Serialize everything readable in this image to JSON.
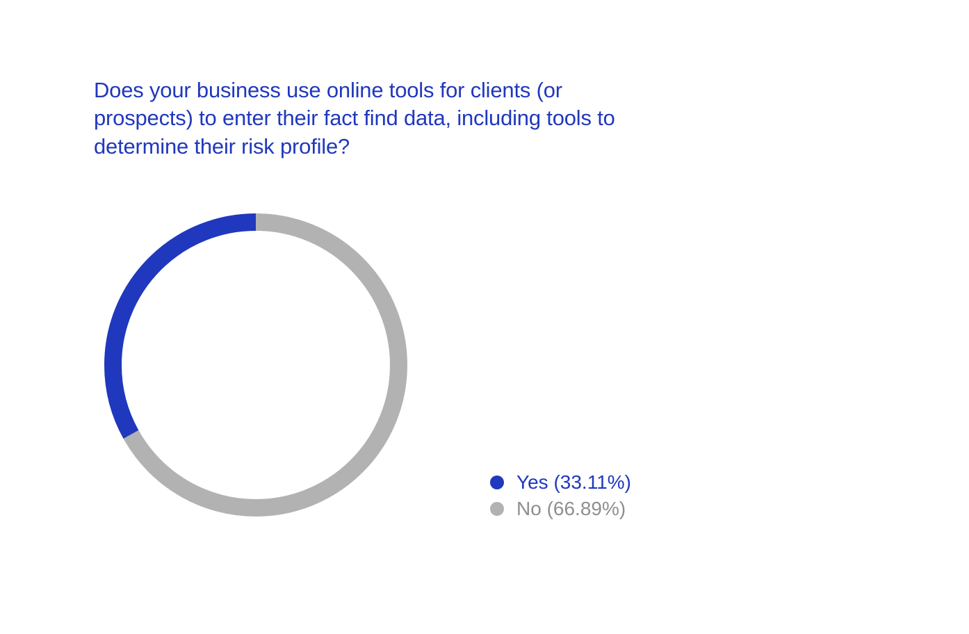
{
  "chart": {
    "type": "donut",
    "title": "Does your business use online tools for clients (or prospects) to enter their fact find data, including tools to determine their risk profile?",
    "title_color": "#2038bd",
    "title_fontsize": 31,
    "background_color": "#ffffff",
    "inner_radius_ratio": 0.88,
    "stroke_width": 25,
    "size": 440,
    "start_angle_deg": -90,
    "slices": [
      {
        "label": "Yes",
        "value": 33.11,
        "color": "#2038bd",
        "text_color": "#2038bd"
      },
      {
        "label": "No",
        "value": 66.89,
        "color": "#b2b2b2",
        "text_color": "#8f8f8f"
      }
    ],
    "legend": {
      "fontsize": 28,
      "items": [
        {
          "text": "Yes (33.11%)",
          "dot_color": "#2038bd",
          "text_color": "#2038bd"
        },
        {
          "text": "No (66.89%)",
          "dot_color": "#b2b2b2",
          "text_color": "#8f8f8f"
        }
      ]
    }
  }
}
